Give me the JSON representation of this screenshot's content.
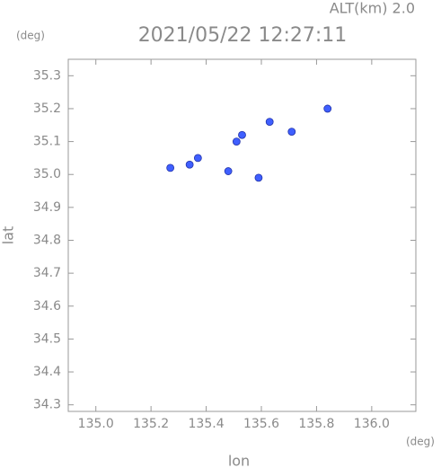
{
  "chart_data": {
    "type": "scatter",
    "title": "2021/05/22 12:27:11",
    "subtitle": "ALT(km) 2.0",
    "x_unit": "(deg)",
    "y_unit": "(deg)",
    "xlabel": "lon",
    "ylabel": "lat",
    "x": [
      135.27,
      135.34,
      135.37,
      135.48,
      135.51,
      135.53,
      135.59,
      135.63,
      135.71,
      135.84
    ],
    "values": [
      35.02,
      35.03,
      35.05,
      35.01,
      35.1,
      35.12,
      34.99,
      35.16,
      35.13,
      35.2
    ],
    "color": "#3f5fff",
    "xlim": [
      134.9,
      136.16
    ],
    "ylim": [
      34.28,
      35.35
    ],
    "xticks": [
      {
        "value": 135,
        "label": "135.0"
      },
      135.2,
      135.4,
      135.6,
      135.8,
      {
        "value": 136,
        "label": "136.0"
      }
    ],
    "yticks": [
      35.3,
      35.2,
      35.1,
      {
        "value": 35,
        "label": "35.0"
      },
      34.9,
      34.8,
      34.7,
      34.6,
      34.5,
      34.4,
      34.3
    ]
  }
}
